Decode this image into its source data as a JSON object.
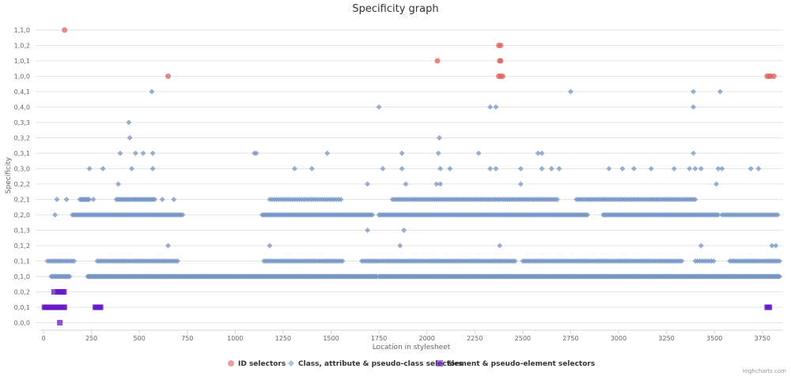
{
  "chart_data": {
    "type": "scatter",
    "title": "Specificity graph",
    "xlabel": "Location in stylesheet",
    "ylabel": "Specificity",
    "xlim": [
      0,
      3850
    ],
    "x_ticks": [
      "0",
      "250",
      "500",
      "750",
      "1000",
      "1250",
      "1500",
      "1750",
      "2000",
      "2250",
      "2500",
      "2750",
      "3000",
      "3250",
      "3500",
      "3750"
    ],
    "y_categories": [
      "0,0,0",
      "0,0,1",
      "0,0,2",
      "0,1,0",
      "0,1,1",
      "0,1,2",
      "0,1,3",
      "0,2,0",
      "0,2,1",
      "0,2,2",
      "0,3,0",
      "0,3,1",
      "0,3,2",
      "0,3,3",
      "0,4,0",
      "0,4,1",
      "1,0,0",
      "1,0,1",
      "1,0,2",
      "1,1,0"
    ],
    "grid": "horizontal",
    "legend_position": "bottom",
    "credits": "Highcharts.com",
    "series": [
      {
        "name": "ID selectors",
        "marker": "circle",
        "color": "#e0605e",
        "points": [
          [
            110,
            "1,1,0"
          ],
          [
            650,
            "1,0,0"
          ],
          [
            2055,
            "1,0,1"
          ],
          [
            2375,
            "1,0,2"
          ],
          [
            2385,
            "1,0,2"
          ],
          [
            2380,
            "1,0,1"
          ],
          [
            2385,
            "1,0,1"
          ],
          [
            2375,
            "1,0,0"
          ],
          [
            2385,
            "1,0,0"
          ],
          [
            2395,
            "1,0,0"
          ],
          [
            3775,
            "1,0,0"
          ],
          [
            3785,
            "1,0,0"
          ],
          [
            3795,
            "1,0,0"
          ],
          [
            3810,
            "1,0,0"
          ]
        ]
      },
      {
        "name": "Class, attribute & pseudo-class selectors",
        "marker": "diamond",
        "color": "#7696c4",
        "ranges": [
          {
            "y": "0,1,0",
            "from": 40,
            "to": 140,
            "step": 6
          },
          {
            "y": "0,1,0",
            "from": 230,
            "to": 1740,
            "step": 5
          },
          {
            "y": "0,1,0",
            "from": 1750,
            "to": 3840,
            "step": 5
          },
          {
            "y": "0,1,1",
            "from": 20,
            "to": 160,
            "step": 10
          },
          {
            "y": "0,1,1",
            "from": 280,
            "to": 700,
            "step": 10
          },
          {
            "y": "0,1,1",
            "from": 1150,
            "to": 1560,
            "step": 10
          },
          {
            "y": "0,1,1",
            "from": 1660,
            "to": 2460,
            "step": 10
          },
          {
            "y": "0,1,1",
            "from": 2500,
            "to": 3330,
            "step": 10
          },
          {
            "y": "0,1,1",
            "from": 3400,
            "to": 3500,
            "step": 12
          },
          {
            "y": "0,1,1",
            "from": 3580,
            "to": 3840,
            "step": 10
          },
          {
            "y": "0,2,0",
            "from": 150,
            "to": 730,
            "step": 8
          },
          {
            "y": "0,2,0",
            "from": 1140,
            "to": 1720,
            "step": 8
          },
          {
            "y": "0,2,0",
            "from": 1750,
            "to": 2840,
            "step": 8
          },
          {
            "y": "0,2,0",
            "from": 2920,
            "to": 3520,
            "step": 8
          },
          {
            "y": "0,2,0",
            "from": 3540,
            "to": 3830,
            "step": 10
          },
          {
            "y": "0,2,1",
            "from": 190,
            "to": 240,
            "step": 6
          },
          {
            "y": "0,2,1",
            "from": 380,
            "to": 580,
            "step": 8
          },
          {
            "y": "0,2,1",
            "from": 1180,
            "to": 1560,
            "step": 12
          },
          {
            "y": "0,2,1",
            "from": 1820,
            "to": 2680,
            "step": 10
          },
          {
            "y": "0,2,1",
            "from": 2780,
            "to": 3400,
            "step": 10
          }
        ],
        "points": [
          [
            60,
            "0,2,0"
          ],
          [
            70,
            "0,2,1"
          ],
          [
            120,
            "0,2,1"
          ],
          [
            260,
            "0,2,1"
          ],
          [
            620,
            "0,2,1"
          ],
          [
            680,
            "0,2,1"
          ],
          [
            240,
            "0,3,0"
          ],
          [
            310,
            "0,3,0"
          ],
          [
            460,
            "0,3,0"
          ],
          [
            570,
            "0,3,0"
          ],
          [
            1310,
            "0,3,0"
          ],
          [
            1400,
            "0,3,0"
          ],
          [
            1770,
            "0,3,0"
          ],
          [
            1870,
            "0,3,0"
          ],
          [
            2070,
            "0,3,0"
          ],
          [
            2120,
            "0,3,0"
          ],
          [
            2330,
            "0,3,0"
          ],
          [
            2360,
            "0,3,0"
          ],
          [
            2490,
            "0,3,0"
          ],
          [
            2600,
            "0,3,0"
          ],
          [
            2650,
            "0,3,0"
          ],
          [
            2690,
            "0,3,0"
          ],
          [
            2950,
            "0,3,0"
          ],
          [
            3020,
            "0,3,0"
          ],
          [
            3080,
            "0,3,0"
          ],
          [
            3170,
            "0,3,0"
          ],
          [
            3290,
            "0,3,0"
          ],
          [
            3370,
            "0,3,0"
          ],
          [
            3400,
            "0,3,0"
          ],
          [
            3430,
            "0,3,0"
          ],
          [
            3520,
            "0,3,0"
          ],
          [
            3540,
            "0,3,0"
          ],
          [
            3690,
            "0,3,0"
          ],
          [
            3730,
            "0,3,0"
          ],
          [
            400,
            "0,3,1"
          ],
          [
            480,
            "0,3,1"
          ],
          [
            520,
            "0,3,1"
          ],
          [
            570,
            "0,3,1"
          ],
          [
            1100,
            "0,3,1"
          ],
          [
            1110,
            "0,3,1"
          ],
          [
            1480,
            "0,3,1"
          ],
          [
            1870,
            "0,3,1"
          ],
          [
            2060,
            "0,3,1"
          ],
          [
            2270,
            "0,3,1"
          ],
          [
            2580,
            "0,3,1"
          ],
          [
            2600,
            "0,3,1"
          ],
          [
            3390,
            "0,3,1"
          ],
          [
            450,
            "0,3,2"
          ],
          [
            2065,
            "0,3,2"
          ],
          [
            445,
            "0,3,3"
          ],
          [
            1750,
            "0,4,0"
          ],
          [
            2330,
            "0,4,0"
          ],
          [
            2360,
            "0,4,0"
          ],
          [
            3390,
            "0,4,0"
          ],
          [
            565,
            "0,4,1"
          ],
          [
            2750,
            "0,4,1"
          ],
          [
            3390,
            "0,4,1"
          ],
          [
            3530,
            "0,4,1"
          ],
          [
            390,
            "0,2,2"
          ],
          [
            1690,
            "0,2,2"
          ],
          [
            1890,
            "0,2,2"
          ],
          [
            2050,
            "0,2,2"
          ],
          [
            2070,
            "0,2,2"
          ],
          [
            2490,
            "0,2,2"
          ],
          [
            3510,
            "0,2,2"
          ],
          [
            1860,
            "0,1,2"
          ],
          [
            1180,
            "0,1,2"
          ],
          [
            2380,
            "0,1,2"
          ],
          [
            3430,
            "0,1,2"
          ],
          [
            3800,
            "0,1,2"
          ],
          [
            3820,
            "0,1,2"
          ],
          [
            650,
            "0,1,2"
          ],
          [
            1690,
            "0,1,3"
          ],
          [
            1880,
            "0,1,3"
          ]
        ]
      },
      {
        "name": "Element & pseudo-element selectors",
        "marker": "square",
        "color": "#6a1bc8",
        "ranges": [
          {
            "y": "0,0,1",
            "from": 5,
            "to": 110,
            "step": 4
          },
          {
            "y": "0,0,1",
            "from": 270,
            "to": 300,
            "step": 4
          },
          {
            "y": "0,0,1",
            "from": 3775,
            "to": 3790,
            "step": 4
          },
          {
            "y": "0,0,2",
            "from": 75,
            "to": 110,
            "step": 4
          }
        ],
        "points": [
          [
            55,
            "0,0,2"
          ],
          [
            85,
            "0,0,0"
          ]
        ]
      }
    ]
  }
}
